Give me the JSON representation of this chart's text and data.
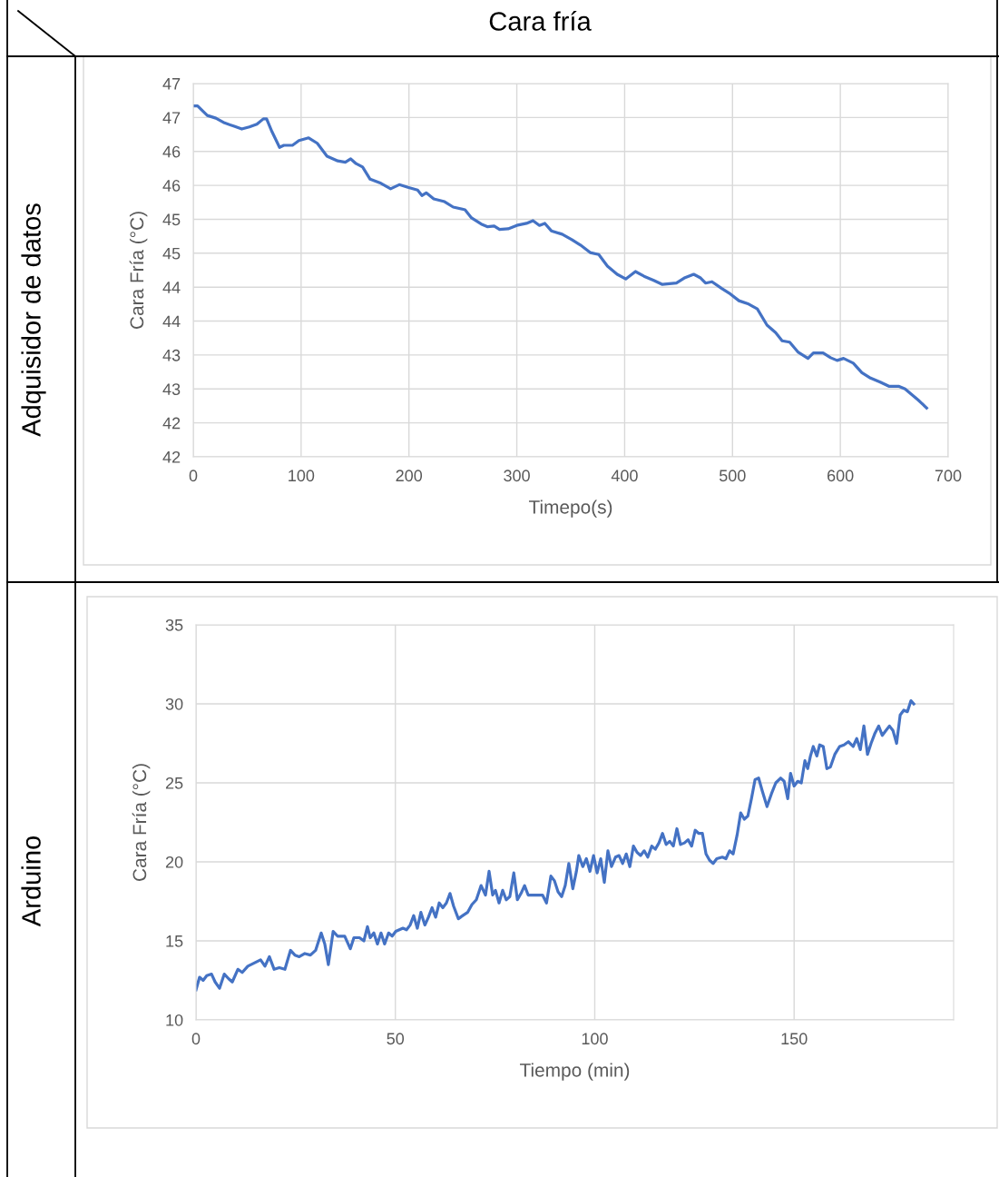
{
  "chart_data": [
    {
      "type": "line",
      "title": "Cara fría",
      "annotations": [
        "Adquisidor de datos"
      ],
      "xlabel": "Timepo(s)",
      "ylabel": "Cara Fría (°C)",
      "grid": true,
      "legend": false,
      "marker": "none",
      "line_style": "solid",
      "xlim": [
        0,
        700
      ],
      "xticks": [
        0,
        100,
        200,
        300,
        400,
        500,
        600,
        700
      ],
      "ylim": [
        41.5,
        47.0
      ],
      "yticks": [
        {
          "value": 41.5,
          "label": "42"
        },
        {
          "value": 42.0,
          "label": "42"
        },
        {
          "value": 42.5,
          "label": "43"
        },
        {
          "value": 43.0,
          "label": "43"
        },
        {
          "value": 43.5,
          "label": "44"
        },
        {
          "value": 44.0,
          "label": "44"
        },
        {
          "value": 44.5,
          "label": "45"
        },
        {
          "value": 45.0,
          "label": "45"
        },
        {
          "value": 45.5,
          "label": "46"
        },
        {
          "value": 46.0,
          "label": "46"
        },
        {
          "value": 46.5,
          "label": "47"
        },
        {
          "value": 47.0,
          "label": "47"
        }
      ],
      "series": [
        {
          "color": "#4472c4",
          "x": [
            0,
            4,
            13,
            21,
            29,
            38,
            45,
            52,
            59,
            65,
            68,
            73,
            80,
            84,
            92,
            98,
            107,
            115,
            124,
            134,
            141,
            146,
            151,
            157,
            164,
            174,
            183,
            191,
            199,
            208,
            212,
            216,
            223,
            233,
            241,
            252,
            258,
            267,
            273,
            279,
            284,
            292,
            300,
            309,
            315,
            321,
            326,
            332,
            342,
            351,
            359,
            368,
            376,
            384,
            393,
            401,
            410,
            418,
            427,
            435,
            448,
            456,
            464,
            470,
            475,
            481,
            490,
            498,
            506,
            515,
            523,
            532,
            540,
            546,
            553,
            561,
            570,
            575,
            584,
            591,
            597,
            603,
            612,
            620,
            628,
            637,
            645,
            654,
            660,
            666,
            672,
            680
          ],
          "values": [
            46.67,
            46.67,
            46.53,
            46.49,
            46.42,
            46.37,
            46.33,
            46.36,
            46.4,
            46.48,
            46.48,
            46.29,
            46.06,
            46.09,
            46.09,
            46.16,
            46.2,
            46.12,
            45.93,
            45.86,
            45.84,
            45.89,
            45.82,
            45.77,
            45.59,
            45.53,
            45.45,
            45.51,
            45.47,
            45.43,
            45.35,
            45.39,
            45.3,
            45.26,
            45.18,
            45.14,
            45.02,
            44.93,
            44.89,
            44.9,
            44.85,
            44.86,
            44.91,
            44.94,
            44.98,
            44.91,
            44.94,
            44.83,
            44.78,
            44.7,
            44.62,
            44.51,
            44.48,
            44.31,
            44.19,
            44.12,
            44.23,
            44.16,
            44.1,
            44.04,
            44.06,
            44.14,
            44.19,
            44.14,
            44.06,
            44.08,
            43.98,
            43.9,
            43.8,
            43.75,
            43.68,
            43.44,
            43.33,
            43.21,
            43.19,
            43.04,
            42.95,
            43.03,
            43.03,
            42.96,
            42.92,
            42.95,
            42.88,
            42.74,
            42.66,
            42.6,
            42.54,
            42.54,
            42.5,
            42.42,
            42.34,
            42.22
          ]
        }
      ]
    },
    {
      "type": "line",
      "annotations": [
        "Arduino"
      ],
      "xlabel": "Tiempo (min)",
      "ylabel": "Cara Fría (°C)",
      "grid": true,
      "legend": false,
      "marker": "none",
      "line_style": "solid",
      "xlim": [
        0,
        190
      ],
      "xticks": [
        0,
        50,
        100,
        150
      ],
      "ylim": [
        10,
        35
      ],
      "yticks": [
        10,
        15,
        20,
        25,
        30,
        35
      ],
      "series": [
        {
          "color": "#4472c4",
          "x": [
            0.0,
            0.9,
            1.8,
            2.7,
            3.9,
            4.8,
            5.9,
            7.1,
            8.2,
            9.1,
            10.5,
            11.6,
            13.0,
            14.6,
            16.2,
            17.3,
            18.4,
            19.6,
            20.9,
            22.3,
            23.7,
            24.8,
            25.9,
            27.3,
            28.7,
            30.0,
            31.4,
            32.3,
            33.2,
            34.4,
            35.5,
            37.3,
            38.7,
            39.6,
            41.0,
            42.1,
            43.0,
            43.7,
            44.6,
            45.5,
            46.4,
            47.3,
            48.3,
            49.2,
            50.1,
            51.0,
            51.9,
            52.8,
            53.7,
            54.6,
            55.5,
            56.4,
            57.4,
            58.3,
            59.2,
            60.1,
            61.0,
            61.9,
            62.8,
            63.7,
            64.6,
            65.8,
            66.9,
            68.1,
            69.2,
            70.3,
            71.5,
            72.6,
            73.5,
            74.4,
            75.1,
            76.0,
            76.9,
            77.8,
            78.7,
            79.7,
            80.6,
            81.5,
            82.4,
            83.3,
            84.7,
            86.9,
            87.9,
            89.0,
            89.9,
            90.8,
            91.7,
            92.6,
            93.5,
            94.5,
            95.4,
            96.0,
            97.0,
            97.9,
            98.8,
            99.7,
            100.6,
            101.5,
            102.4,
            103.3,
            104.2,
            105.2,
            106.1,
            107.0,
            107.9,
            108.8,
            109.7,
            110.6,
            111.5,
            112.4,
            113.3,
            114.3,
            115.2,
            116.1,
            117.0,
            117.9,
            118.8,
            119.7,
            120.6,
            121.5,
            122.5,
            123.4,
            124.3,
            125.2,
            126.1,
            127.0,
            127.9,
            128.8,
            129.7,
            130.6,
            132.0,
            132.9,
            133.8,
            134.7,
            135.7,
            136.6,
            137.5,
            138.4,
            139.3,
            140.2,
            141.1,
            142.0,
            143.2,
            144.3,
            145.4,
            146.6,
            147.5,
            148.4,
            149.1,
            150.0,
            150.9,
            151.8,
            152.7,
            153.4,
            154.1,
            154.8,
            155.7,
            156.4,
            157.3,
            158.2,
            159.1,
            160.2,
            161.4,
            162.5,
            163.6,
            164.8,
            165.7,
            166.6,
            167.5,
            168.4,
            169.3,
            170.2,
            171.2,
            172.1,
            173.0,
            173.9,
            174.8,
            175.7,
            176.6,
            177.5,
            178.4,
            179.3,
            180.0
          ],
          "values": [
            11.9,
            12.7,
            12.5,
            12.8,
            12.9,
            12.4,
            12.0,
            12.9,
            12.6,
            12.4,
            13.2,
            13.0,
            13.4,
            13.6,
            13.8,
            13.4,
            14.0,
            13.2,
            13.3,
            13.2,
            14.4,
            14.1,
            14.0,
            14.2,
            14.1,
            14.4,
            15.5,
            14.8,
            13.5,
            15.6,
            15.3,
            15.3,
            14.5,
            15.2,
            15.2,
            15.0,
            15.9,
            15.2,
            15.5,
            14.8,
            15.5,
            14.8,
            15.5,
            15.3,
            15.6,
            15.7,
            15.8,
            15.7,
            16.0,
            16.6,
            15.8,
            16.8,
            16.0,
            16.5,
            17.1,
            16.5,
            17.4,
            17.1,
            17.4,
            18.0,
            17.2,
            16.4,
            16.6,
            16.8,
            17.3,
            17.6,
            18.5,
            17.9,
            19.4,
            17.9,
            18.2,
            17.4,
            18.2,
            17.6,
            17.8,
            19.3,
            17.6,
            18.0,
            18.5,
            17.9,
            17.9,
            17.9,
            17.4,
            19.1,
            18.8,
            18.1,
            17.8,
            18.5,
            19.9,
            18.3,
            19.4,
            20.4,
            19.7,
            20.2,
            19.4,
            20.4,
            19.3,
            20.2,
            18.7,
            20.7,
            19.7,
            20.3,
            20.4,
            19.9,
            20.5,
            19.7,
            21.0,
            20.6,
            20.4,
            20.7,
            20.3,
            21.0,
            20.8,
            21.2,
            21.8,
            21.1,
            21.3,
            21.0,
            22.1,
            21.1,
            21.2,
            21.4,
            21.0,
            22.0,
            21.8,
            21.8,
            20.5,
            20.1,
            19.9,
            20.2,
            20.3,
            20.2,
            20.7,
            20.5,
            21.7,
            23.1,
            22.7,
            22.9,
            24.0,
            25.2,
            25.3,
            24.5,
            23.5,
            24.3,
            25.0,
            25.3,
            25.1,
            24.0,
            25.6,
            24.8,
            25.1,
            25.0,
            26.4,
            25.9,
            26.7,
            27.3,
            26.7,
            27.4,
            27.3,
            25.9,
            26.0,
            26.8,
            27.3,
            27.4,
            27.6,
            27.3,
            27.8,
            27.1,
            28.6,
            26.8,
            27.5,
            28.1,
            28.6,
            28.0,
            28.3,
            28.6,
            28.3,
            27.5,
            29.3,
            29.6,
            29.5,
            30.2,
            30.0
          ]
        }
      ]
    }
  ]
}
